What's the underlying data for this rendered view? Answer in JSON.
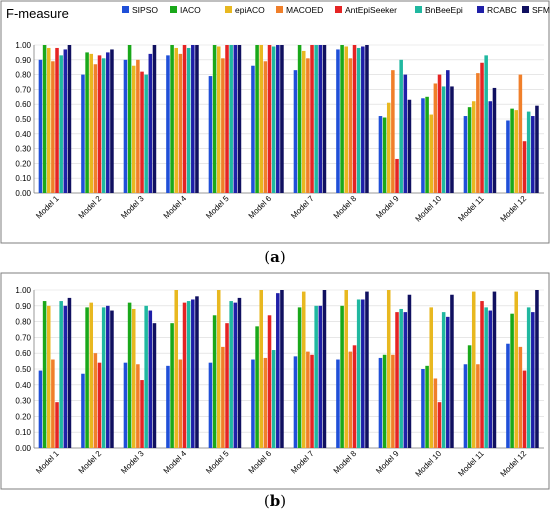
{
  "chart_data": [
    {
      "type": "bar",
      "title": "F-measure",
      "caption": "a",
      "ylim": [
        0,
        1.0
      ],
      "yticks": [
        "0.00",
        "0.10",
        "0.20",
        "0.30",
        "0.40",
        "0.50",
        "0.60",
        "0.70",
        "0.80",
        "0.90",
        "1.00"
      ],
      "grid": true,
      "legend_position": "top",
      "categories": [
        "Model 1",
        "Model 2",
        "Model 3",
        "Model 4",
        "Model 5",
        "Model 6",
        "Model 7",
        "Model 8",
        "Model 9",
        "Model 10",
        "Model 11",
        "Model 12"
      ],
      "series": [
        {
          "name": "SIPSO",
          "color": "#1f4fd8",
          "values": [
            0.9,
            0.8,
            0.9,
            0.93,
            0.79,
            0.86,
            0.83,
            0.97,
            0.52,
            0.64,
            0.52,
            0.49
          ]
        },
        {
          "name": "IACO",
          "color": "#1aa81a",
          "values": [
            1.0,
            0.95,
            1.0,
            1.0,
            1.0,
            1.0,
            1.0,
            1.0,
            0.51,
            0.65,
            0.58,
            0.57
          ]
        },
        {
          "name": "epiACO",
          "color": "#e8b820",
          "values": [
            0.98,
            0.94,
            0.86,
            0.98,
            0.99,
            1.0,
            0.96,
            0.99,
            0.61,
            0.53,
            0.62,
            0.56
          ]
        },
        {
          "name": "MACOED",
          "color": "#f07f2a",
          "values": [
            0.89,
            0.87,
            0.9,
            0.94,
            0.91,
            0.89,
            0.91,
            0.91,
            0.83,
            0.74,
            0.81,
            0.8
          ]
        },
        {
          "name": "AntEpiSeeker",
          "color": "#e52424",
          "values": [
            0.98,
            0.93,
            0.82,
            1.0,
            1.0,
            1.0,
            1.0,
            1.0,
            0.23,
            0.8,
            0.88,
            0.35
          ]
        },
        {
          "name": "BnBeeEpi",
          "color": "#20b8a0",
          "values": [
            0.93,
            0.91,
            0.8,
            0.98,
            1.0,
            0.99,
            1.0,
            0.98,
            0.9,
            0.72,
            0.93,
            0.55
          ]
        },
        {
          "name": "RCABC",
          "color": "#1f1fa8",
          "values": [
            0.97,
            0.95,
            0.94,
            1.0,
            1.0,
            1.0,
            1.0,
            0.99,
            0.8,
            0.83,
            0.62,
            0.52
          ]
        },
        {
          "name": "SFMOABC",
          "color": "#101060",
          "values": [
            1.0,
            0.97,
            1.0,
            1.0,
            1.0,
            1.0,
            1.0,
            1.0,
            0.63,
            0.72,
            0.71,
            0.59
          ]
        }
      ]
    },
    {
      "type": "bar",
      "title": "",
      "caption": "b",
      "ylim": [
        0,
        1.0
      ],
      "yticks": [
        "0.00",
        "0.10",
        "0.20",
        "0.30",
        "0.40",
        "0.50",
        "0.60",
        "0.70",
        "0.80",
        "0.90",
        "1.00"
      ],
      "grid": true,
      "categories": [
        "Model 1",
        "Model 2",
        "Model 3",
        "Model 4",
        "Model 5",
        "Model 6",
        "Model 7",
        "Model 8",
        "Model 9",
        "Model 10",
        "Model 11",
        "Model 12"
      ],
      "series": [
        {
          "name": "SIPSO",
          "color": "#1f4fd8",
          "values": [
            0.49,
            0.47,
            0.54,
            0.52,
            0.54,
            0.56,
            0.58,
            0.56,
            0.57,
            0.5,
            0.53,
            0.66
          ]
        },
        {
          "name": "IACO",
          "color": "#1aa81a",
          "values": [
            0.93,
            0.89,
            0.92,
            0.79,
            0.84,
            0.77,
            0.89,
            0.9,
            0.59,
            0.52,
            0.65,
            0.85
          ]
        },
        {
          "name": "epiACO",
          "color": "#e8b820",
          "values": [
            0.9,
            0.92,
            0.88,
            1.0,
            1.0,
            1.0,
            0.99,
            1.0,
            1.0,
            0.89,
            0.99,
            0.99
          ]
        },
        {
          "name": "MACOED",
          "color": "#f07f2a",
          "values": [
            0.56,
            0.6,
            0.53,
            0.56,
            0.64,
            0.57,
            0.61,
            0.61,
            0.59,
            0.44,
            0.53,
            0.64
          ]
        },
        {
          "name": "AntEpiSeeker",
          "color": "#e52424",
          "values": [
            0.29,
            0.54,
            0.43,
            0.92,
            0.79,
            0.84,
            0.59,
            0.65,
            0.86,
            0.29,
            0.93,
            0.49
          ]
        },
        {
          "name": "BnBeeEpi",
          "color": "#20b8a0",
          "values": [
            0.93,
            0.89,
            0.9,
            0.93,
            0.93,
            0.62,
            0.9,
            0.94,
            0.88,
            0.86,
            0.89,
            0.89
          ]
        },
        {
          "name": "RCABC",
          "color": "#1f1fa8",
          "values": [
            0.9,
            0.9,
            0.87,
            0.94,
            0.92,
            0.98,
            0.9,
            0.94,
            0.86,
            0.83,
            0.87,
            0.86
          ]
        },
        {
          "name": "SFMOABC",
          "color": "#101060",
          "values": [
            0.95,
            0.87,
            0.79,
            0.96,
            0.95,
            1.0,
            1.0,
            0.99,
            0.97,
            0.97,
            0.99,
            1.0
          ]
        }
      ]
    }
  ]
}
